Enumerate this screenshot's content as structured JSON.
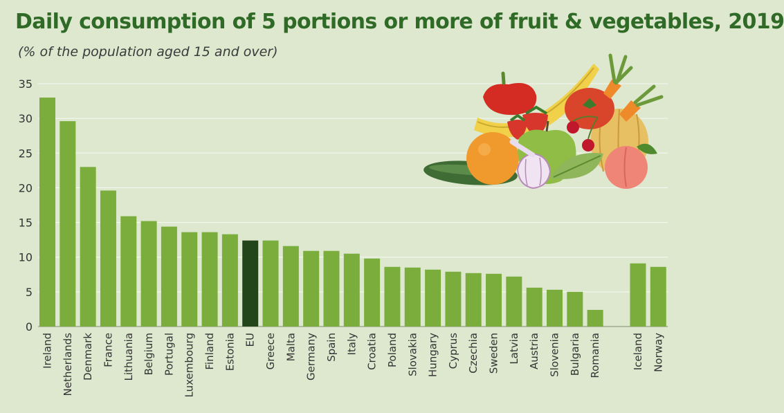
{
  "chart_data": {
    "type": "bar",
    "title": "Daily consumption of 5 portions or more of fruit & vegetables, 2019",
    "subtitle": "(% of  the population aged 15 and over)",
    "ylim": [
      0,
      35
    ],
    "yticks": [
      0,
      5,
      10,
      15,
      20,
      25,
      30,
      35
    ],
    "grid": true,
    "categories": [
      "Ireland",
      "Netherlands",
      "Denmark",
      "France",
      "Lithuania",
      "Belgium",
      "Portugal",
      "Luxembourg",
      "Finland",
      "Estonia",
      "EU",
      "Greece",
      "Malta",
      "Germany",
      "Spain",
      "Italy",
      "Croatia",
      "Poland",
      "Slovakia",
      "Hungary",
      "Cyprus",
      "Czechia",
      "Sweden",
      "Latvia",
      "Austria",
      "Slovenia",
      "Bulgaria",
      "Romania",
      "Iceland",
      "Norway"
    ],
    "values": [
      33.0,
      29.6,
      23.0,
      19.6,
      15.9,
      15.2,
      14.4,
      13.6,
      13.6,
      13.3,
      12.4,
      12.4,
      11.6,
      10.9,
      10.9,
      10.5,
      9.8,
      8.6,
      8.5,
      8.2,
      7.9,
      7.7,
      7.6,
      7.2,
      5.6,
      5.3,
      5.0,
      2.4,
      9.1,
      8.6
    ],
    "colors": {
      "bar": "#7aad3c",
      "highlight": "#22461a",
      "title": "#2f6a26",
      "background": "#dde8cf"
    },
    "highlight_category": "EU"
  }
}
